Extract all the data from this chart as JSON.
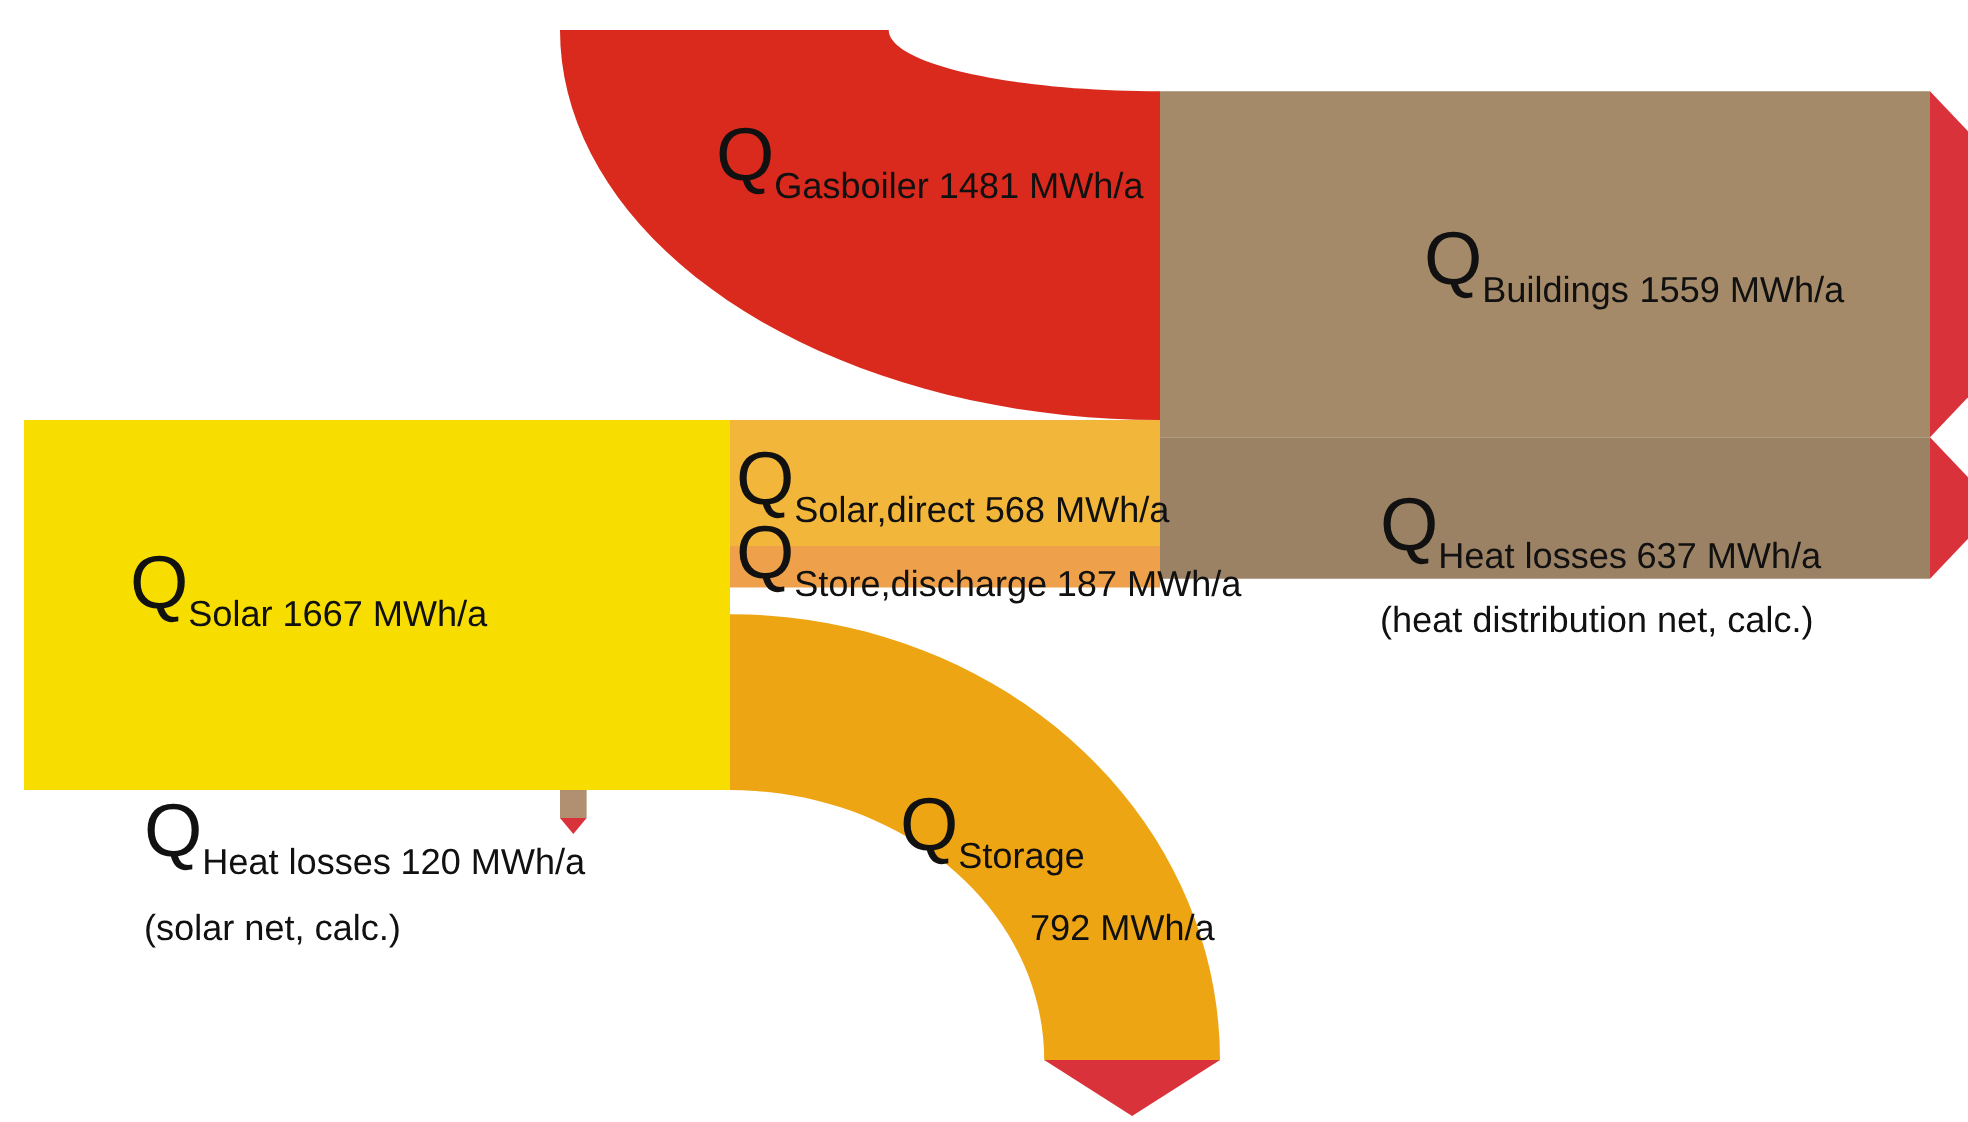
{
  "chart_data": {
    "type": "other",
    "categories": [
      "Q$_{Gasboiler}$",
      "Q$_{Buildings}$",
      "Q$_{Solar}$",
      "Q$_{Solar,direct}$",
      "Q$_{Store,discharge}$",
      "Q$_{Heat losses}$",
      "Q$_{Storage}$",
      "Q$_{Heat losses}$"
    ],
    "value_labels": [
      "1481 MWh/a",
      "1559 MWh/a",
      "1667 MWh/a",
      "568 MWh/a",
      "187 MWh/a",
      "637 MWh/a",
      "792 MWh/a",
      "120 MWh/a"
    ],
    "values": [
      1481,
      1559,
      1667,
      568,
      187,
      637,
      792,
      120
    ],
    "colors": [
      "#da2a1e",
      "#a48a68",
      "#f7de00",
      "#f2b63a",
      "#eea14a",
      "#9c8264",
      "#eea513",
      "#b09070"
    ],
    "annotations": [
      "(heat distribution net, calc.)",
      "(solar net, calc.)"
    ]
  }
}
